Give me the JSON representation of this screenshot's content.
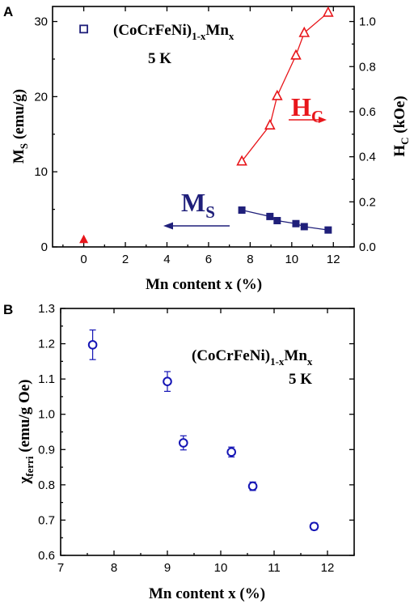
{
  "chart_data": [
    {
      "panel": "A",
      "type": "scatter",
      "formula": {
        "base": "(CoCrFeNi)",
        "sub1": "1-x",
        "mid": "Mn",
        "sub2": "x"
      },
      "temperature": "5 K",
      "xlabel": "Mn content x (%)",
      "ylabel": {
        "main": "M",
        "sub": "S",
        "rest": " (emu/g)"
      },
      "ylabel_right": {
        "main": "H",
        "sub": "C",
        "rest": " (kOe)"
      },
      "xlim": [
        -1.5,
        13
      ],
      "ylim": [
        0,
        32
      ],
      "ylim_right": [
        0,
        1.0667
      ],
      "xticks": [
        0,
        2,
        4,
        6,
        8,
        10,
        12
      ],
      "yticks": [
        0,
        10,
        20,
        30
      ],
      "yticks_right": [
        0.0,
        0.2,
        0.4,
        0.6,
        0.8,
        1.0
      ],
      "ms_label": {
        "main": "M",
        "sub": "S"
      },
      "hc_label": {
        "main": "H",
        "sub": "C"
      },
      "colors": {
        "ms": "#1f1f7a",
        "hc": "#e8161b",
        "temp": "#1a7a1a",
        "ms_open": "#1f1f7a",
        "hc_solid": "#e8161b"
      },
      "series": [
        {
          "name": "Ms",
          "axis": "left",
          "marker": "filled-square",
          "color": "#1f1f7a",
          "connected": true,
          "x": [
            7.6,
            8.95,
            9.3,
            10.2,
            10.6,
            11.75
          ],
          "y": [
            4.9,
            4.05,
            3.5,
            3.1,
            2.7,
            2.25
          ]
        },
        {
          "name": "Hc",
          "axis": "right",
          "marker": "open-triangle",
          "color": "#e8161b",
          "connected": true,
          "x": [
            7.6,
            8.95,
            9.3,
            10.2,
            10.6,
            11.75
          ],
          "y": [
            0.38,
            0.54,
            0.67,
            0.85,
            0.95,
            1.04
          ]
        },
        {
          "name": "Ms x=0",
          "axis": "left",
          "marker": "open-square",
          "color": "#1f1f7a",
          "connected": false,
          "x": [
            0
          ],
          "y": [
            29.0
          ]
        },
        {
          "name": "Hc x=0",
          "axis": "right",
          "marker": "filled-triangle",
          "color": "#e8161b",
          "connected": false,
          "x": [
            0
          ],
          "y": [
            0.033
          ]
        }
      ]
    },
    {
      "panel": "B",
      "type": "scatter",
      "formula": {
        "base": "(CoCrFeNi)",
        "sub1": "1-x",
        "mid": "Mn",
        "sub2": "x"
      },
      "temperature": "5 K",
      "xlabel": "Mn content x (%)",
      "ylabel": {
        "main": "χ",
        "sub": "ferri",
        "rest": " (emu/g Oe)"
      },
      "xlim": [
        7,
        12.5
      ],
      "ylim": [
        0.6,
        1.3
      ],
      "xticks": [
        7,
        8,
        9,
        10,
        11,
        12
      ],
      "yticks": [
        0.6,
        0.7,
        0.8,
        0.9,
        1.0,
        1.1,
        1.2,
        1.3
      ],
      "colors": {
        "points": "#1515b5",
        "temp": "#1a7a1a"
      },
      "series": [
        {
          "name": "chi_ferri",
          "marker": "open-circle",
          "color": "#1515b5",
          "x": [
            7.6,
            9.0,
            9.3,
            10.2,
            10.6,
            11.75
          ],
          "y": [
            1.197,
            1.093,
            0.919,
            0.893,
            0.796,
            0.682
          ],
          "err": [
            0.042,
            0.028,
            0.02,
            0.014,
            0.012,
            0.01
          ]
        }
      ]
    }
  ]
}
